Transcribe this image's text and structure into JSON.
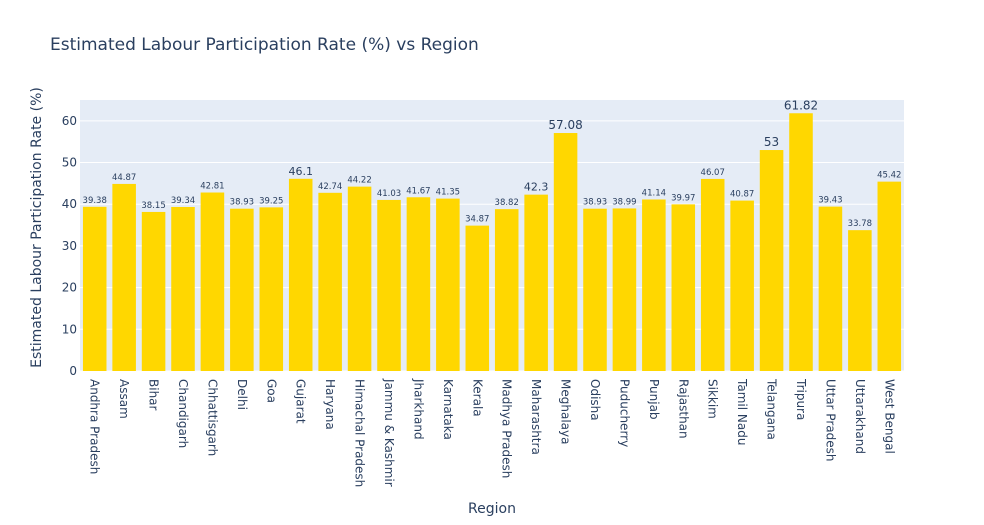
{
  "chart_data": {
    "type": "bar",
    "title": "Estimated Labour Participation Rate (%) vs Region",
    "xlabel": "Region",
    "ylabel": "Estimated Labour Participation Rate (%)",
    "ylim": [
      0,
      65
    ],
    "yticks": [
      0,
      10,
      20,
      30,
      40,
      50,
      60
    ],
    "grid": true,
    "bar_color": "#FFD700",
    "plot_background": "#E5ECF6",
    "categories": [
      "Andhra Pradesh",
      "Assam",
      "Bihar",
      "Chandigarh",
      "Chhattisgarh",
      "Delhi",
      "Goa",
      "Gujarat",
      "Haryana",
      "Himachal Pradesh",
      "Jammu & Kashmir",
      "Jharkhand",
      "Karnataka",
      "Kerala",
      "Madhya Pradesh",
      "Maharashtra",
      "Meghalaya",
      "Odisha",
      "Puducherry",
      "Punjab",
      "Rajasthan",
      "Sikkim",
      "Tamil Nadu",
      "Telangana",
      "Tripura",
      "Uttar Pradesh",
      "Uttarakhand",
      "West Bengal"
    ],
    "values": [
      39.38,
      44.87,
      38.15,
      39.34,
      42.81,
      38.93,
      39.25,
      46.1,
      42.74,
      44.22,
      41.03,
      41.67,
      41.35,
      34.87,
      38.82,
      42.3,
      57.08,
      38.93,
      38.99,
      41.14,
      39.97,
      46.07,
      40.87,
      53,
      61.82,
      39.43,
      33.78,
      45.42
    ],
    "value_labels": [
      "39.38",
      "44.87",
      "38.15",
      "39.34",
      "42.81",
      "38.93",
      "39.25",
      "46.1",
      "42.74",
      "44.22",
      "41.03",
      "41.67",
      "41.35",
      "34.87",
      "38.82",
      "42.3",
      "57.08",
      "38.93",
      "38.99",
      "41.14",
      "39.97",
      "46.07",
      "40.87",
      "53",
      "61.82",
      "39.43",
      "33.78",
      "45.42"
    ]
  }
}
